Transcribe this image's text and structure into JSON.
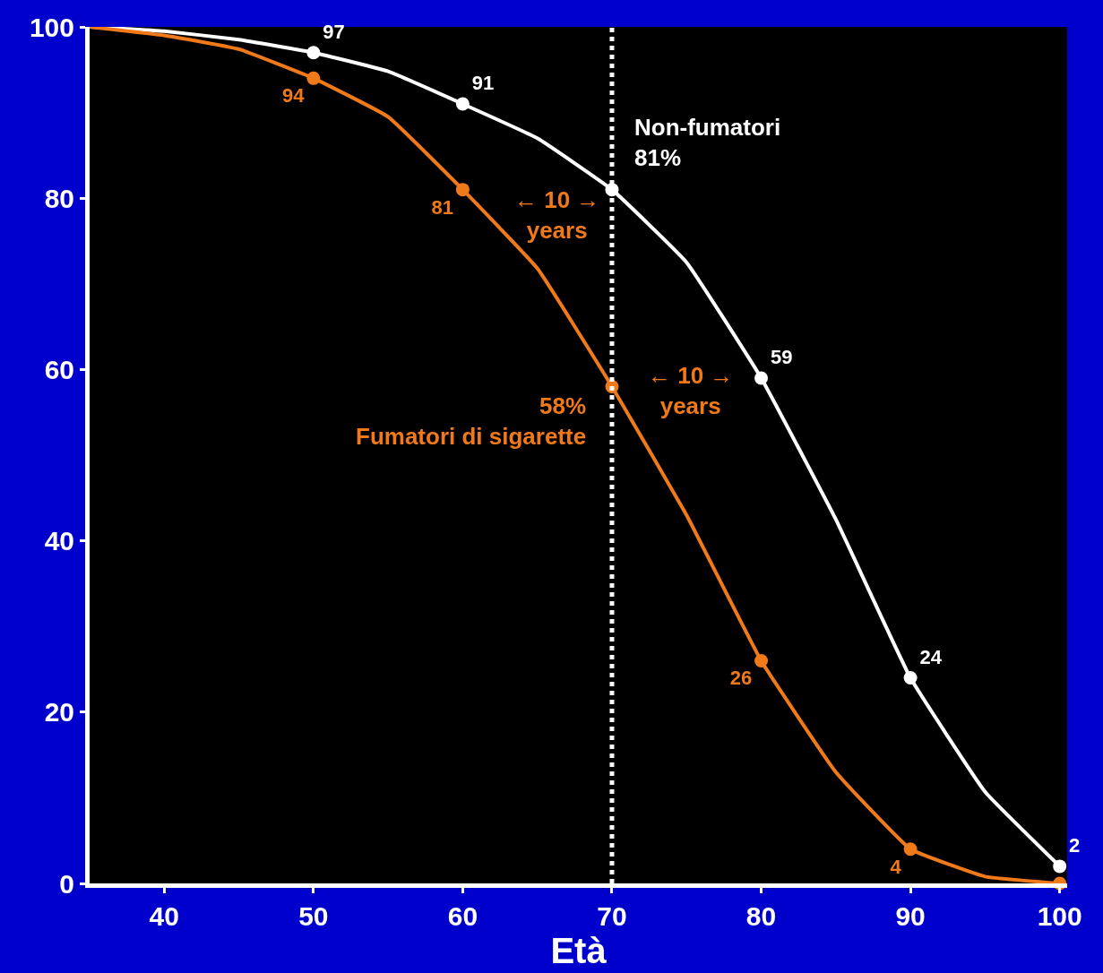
{
  "chart_data": {
    "type": "line",
    "xlabel": "Età",
    "xlim": [
      35,
      100.5
    ],
    "xticks": [
      40,
      50,
      60,
      70,
      80,
      90,
      100
    ],
    "ylim": [
      0,
      100
    ],
    "yticks": [
      0,
      20,
      40,
      60,
      80,
      100
    ],
    "grid": false,
    "marker": "none",
    "line_style": "solid",
    "series": [
      {
        "color": "#ffffff",
        "x": [
          35,
          40,
          45,
          50,
          55,
          60,
          65,
          70,
          75,
          80,
          85,
          90,
          95,
          100
        ],
        "values": [
          100,
          99.5,
          98.5,
          97,
          94.8,
          91,
          87,
          81,
          72.5,
          59,
          42.5,
          24,
          10.7,
          2
        ]
      },
      {
        "color": "#f07a1a",
        "x": [
          35,
          40,
          45,
          50,
          55,
          60,
          65,
          70,
          75,
          80,
          85,
          90,
          95,
          100
        ],
        "values": [
          100,
          99,
          97.4,
          94,
          89.5,
          81,
          71.8,
          58,
          43,
          26,
          13,
          4,
          0.8,
          0
        ]
      },
      {
        "type": "scatter",
        "marker": "circle",
        "color": "#ffffff",
        "x": [
          50,
          60,
          70,
          80,
          90,
          100
        ],
        "values": [
          97,
          91,
          81,
          59,
          24,
          2
        ],
        "value_labels": [
          "97",
          "91",
          null,
          "59",
          "24",
          "2"
        ]
      },
      {
        "type": "scatter",
        "marker": "circle",
        "color": "#f07a1a",
        "x": [
          50,
          60,
          70,
          80,
          90,
          100
        ],
        "values": [
          94,
          81,
          58,
          26,
          4,
          0
        ],
        "value_labels": [
          "94",
          "81",
          null,
          "26",
          "4",
          null
        ]
      }
    ],
    "ref_lines": [
      {
        "axis": "x",
        "value": 70,
        "color": "#ffffff",
        "line_style": "dotted"
      }
    ],
    "annotations": [
      "Non-fumatori\n81%",
      "58%\nFumatori di sigarette",
      "← 10 →\nyears",
      "← 10 →\nyears"
    ]
  }
}
